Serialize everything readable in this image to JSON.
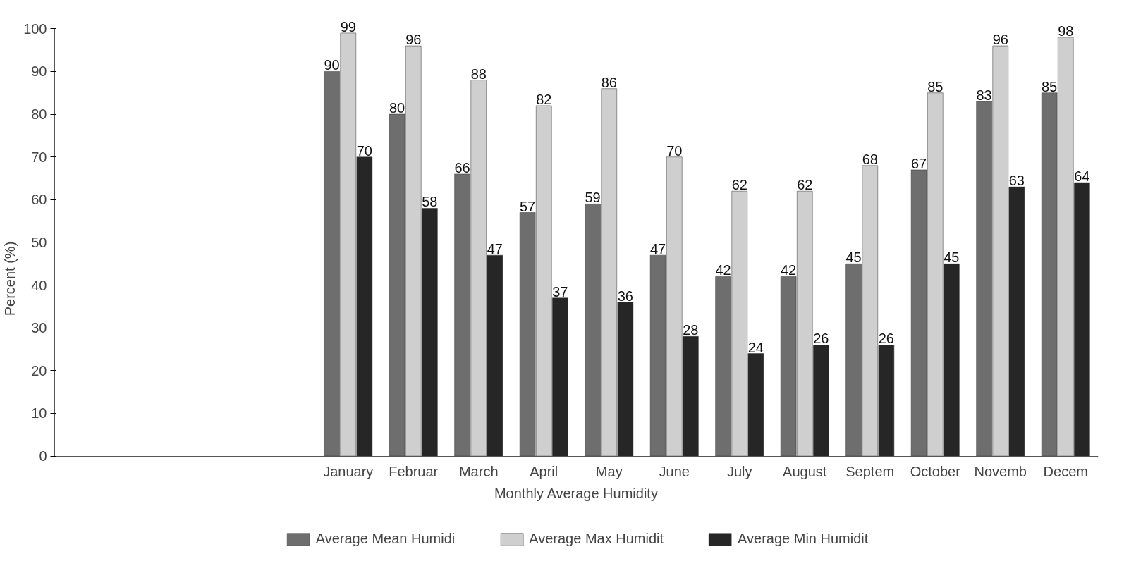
{
  "chart_data": {
    "type": "bar",
    "xlabel": "Monthly Average Humidity",
    "ylabel": "Percent (%)",
    "categories": [
      null,
      null,
      null,
      null,
      "January",
      "Februar",
      "March",
      "April",
      "May",
      "June",
      "July",
      "August",
      "Septem",
      "October",
      "Novemb",
      "Decem"
    ],
    "series": [
      {
        "name": "Average Mean Humidi",
        "color": "#6e6e6e",
        "values": [
          null,
          null,
          null,
          null,
          90,
          80,
          66,
          57,
          59,
          47,
          42,
          42,
          45,
          67,
          83,
          85
        ]
      },
      {
        "name": "Average Max Humidit",
        "color": "#cfcfcf",
        "values": [
          null,
          null,
          null,
          null,
          99,
          96,
          88,
          82,
          86,
          70,
          62,
          62,
          68,
          85,
          96,
          98
        ]
      },
      {
        "name": "Average Min Humidit",
        "color": "#262626",
        "values": [
          null,
          null,
          null,
          null,
          70,
          58,
          47,
          37,
          36,
          28,
          24,
          26,
          26,
          45,
          63,
          64
        ]
      }
    ],
    "ylim": [
      0,
      100
    ],
    "yticks": [
      0,
      10,
      20,
      30,
      40,
      50,
      60,
      70,
      80,
      90,
      100
    ],
    "data_labels": true,
    "legend": "bottom",
    "grid": false
  }
}
